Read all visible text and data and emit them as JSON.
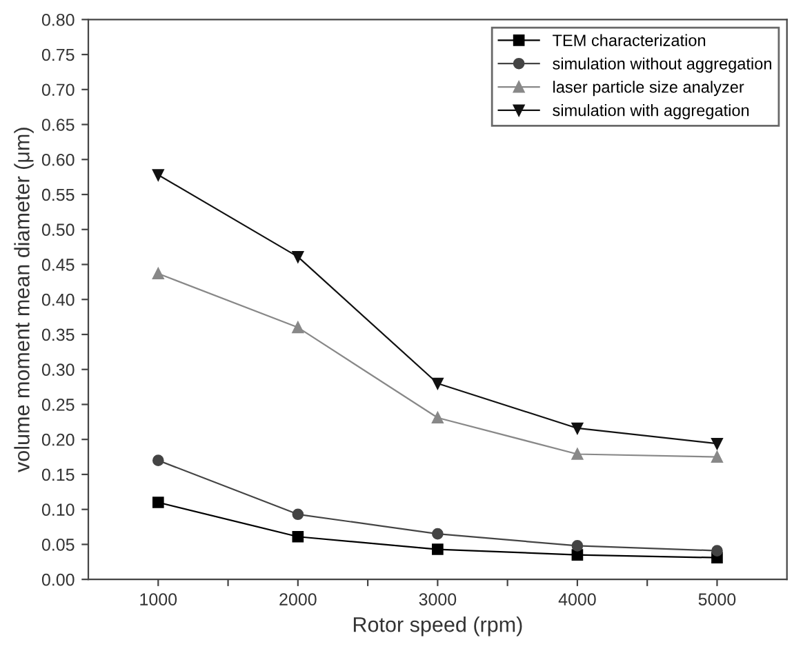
{
  "chart_data": {
    "type": "line",
    "xlabel": "Rotor speed (rpm)",
    "ylabel": "volume moment mean diameter (μm)",
    "x": [
      1000,
      2000,
      3000,
      4000,
      5000
    ],
    "series": [
      {
        "name": "TEM characterization",
        "color": "#000000",
        "marker": "square",
        "values": [
          0.11,
          0.061,
          0.043,
          0.035,
          0.031
        ]
      },
      {
        "name": "simulation without aggregation",
        "color": "#444444",
        "marker": "circle",
        "values": [
          0.17,
          0.093,
          0.065,
          0.048,
          0.041
        ]
      },
      {
        "name": "laser particle size analyzer",
        "color": "#888888",
        "marker": "triangle",
        "values": [
          0.437,
          0.36,
          0.231,
          0.179,
          0.175
        ]
      },
      {
        "name": "simulation with aggregation",
        "color": "#111111",
        "marker": "triangle_down",
        "values": [
          0.578,
          0.461,
          0.28,
          0.216,
          0.194
        ]
      }
    ],
    "xlim": [
      500,
      5500
    ],
    "xticks": [
      1000,
      {
        "value": 1500,
        "label": null
      },
      2000,
      {
        "value": 2500,
        "label": null
      },
      3000,
      {
        "value": 3500,
        "label": null
      },
      4000,
      {
        "value": 4500,
        "label": null
      },
      5000
    ],
    "ylim": [
      0,
      0.8
    ],
    "yticks": [
      {
        "value": 0,
        "label": "0.00"
      },
      0.05,
      {
        "value": 0.1,
        "label": "0.10"
      },
      0.15,
      {
        "value": 0.2,
        "label": "0.20"
      },
      0.25,
      {
        "value": 0.3,
        "label": "0.30"
      },
      0.35,
      {
        "value": 0.4,
        "label": "0.40"
      },
      0.45,
      {
        "value": 0.5,
        "label": "0.50"
      },
      0.55,
      {
        "value": 0.6,
        "label": "0.60"
      },
      0.65,
      {
        "value": 0.7,
        "label": "0.70"
      },
      0.75,
      {
        "value": 0.8,
        "label": "0.80"
      }
    ],
    "grid": false,
    "legend": "top right",
    "line_style": "solid"
  }
}
